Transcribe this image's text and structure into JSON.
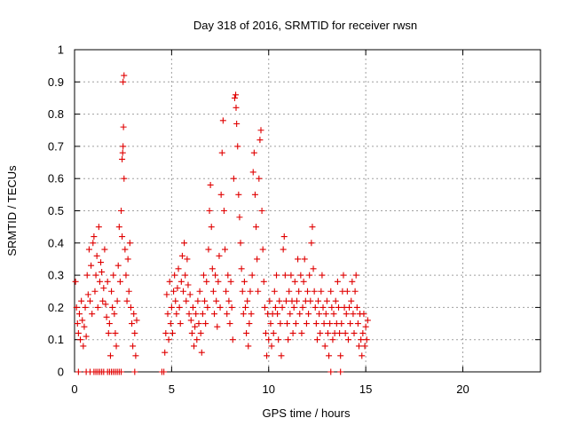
{
  "chart_data": {
    "type": "scatter",
    "title": "Day 318 of 2016, SRMTID for receiver rwsn",
    "xlabel": "GPS time / hours",
    "ylabel": "SRMTID / TECUs",
    "xlim": [
      0,
      24
    ],
    "ylim": [
      0,
      1
    ],
    "x_ticks": [
      "0",
      "5",
      "10",
      "15",
      "20"
    ],
    "y_ticks": [
      "0",
      "0.1",
      "0.2",
      "0.3",
      "0.4",
      "0.5",
      "0.6",
      "0.7",
      "0.8",
      "0.9",
      "1"
    ],
    "grid": true,
    "marker": "+",
    "marker_color": "#e00000",
    "series": [
      {
        "name": "SRMTID",
        "points": [
          [
            0.05,
            0.28
          ],
          [
            0.1,
            0.2
          ],
          [
            0.15,
            0.15
          ],
          [
            0.2,
            0.12
          ],
          [
            0.25,
            0.18
          ],
          [
            0.3,
            0.1
          ],
          [
            0.35,
            0.22
          ],
          [
            0.4,
            0.16
          ],
          [
            0.45,
            0.08
          ],
          [
            0.5,
            0.14
          ],
          [
            0.55,
            0.2
          ],
          [
            0.6,
            0.11
          ],
          [
            0.65,
            0.3
          ],
          [
            0.7,
            0.24
          ],
          [
            0.75,
            0.38
          ],
          [
            0.8,
            0.22
          ],
          [
            0.85,
            0.33
          ],
          [
            0.9,
            0.18
          ],
          [
            0.95,
            0.4
          ],
          [
            1.0,
            0.42
          ],
          [
            1.05,
            0.25
          ],
          [
            1.1,
            0.3
          ],
          [
            1.15,
            0.36
          ],
          [
            1.2,
            0.2
          ],
          [
            1.25,
            0.45
          ],
          [
            1.3,
            0.28
          ],
          [
            1.35,
            0.34
          ],
          [
            1.4,
            0.31
          ],
          [
            1.45,
            0.22
          ],
          [
            1.5,
            0.26
          ],
          [
            1.55,
            0.38
          ],
          [
            1.6,
            0.21
          ],
          [
            1.65,
            0.17
          ],
          [
            1.7,
            0.28
          ],
          [
            1.75,
            0.12
          ],
          [
            1.8,
            0.15
          ],
          [
            1.85,
            0.05
          ],
          [
            1.9,
            0.25
          ],
          [
            1.95,
            0.2
          ],
          [
            2.0,
            0.3
          ],
          [
            2.05,
            0.18
          ],
          [
            2.1,
            0.12
          ],
          [
            2.15,
            0.08
          ],
          [
            2.2,
            0.22
          ],
          [
            2.25,
            0.33
          ],
          [
            2.3,
            0.45
          ],
          [
            2.35,
            0.28
          ],
          [
            2.4,
            0.5
          ],
          [
            2.45,
            0.42
          ],
          [
            2.45,
            0.66
          ],
          [
            2.48,
            0.68
          ],
          [
            2.5,
            0.7
          ],
          [
            2.5,
            0.9
          ],
          [
            2.52,
            0.76
          ],
          [
            2.55,
            0.92
          ],
          [
            2.55,
            0.6
          ],
          [
            2.6,
            0.38
          ],
          [
            2.65,
            0.3
          ],
          [
            2.7,
            0.22
          ],
          [
            2.75,
            0.35
          ],
          [
            2.8,
            0.25
          ],
          [
            2.85,
            0.4
          ],
          [
            2.9,
            0.2
          ],
          [
            2.95,
            0.15
          ],
          [
            3.0,
            0.08
          ],
          [
            3.05,
            0.18
          ],
          [
            3.1,
            0.12
          ],
          [
            3.15,
            0.05
          ],
          [
            3.2,
            0.16
          ],
          [
            0.2,
            0
          ],
          [
            0.6,
            0
          ],
          [
            0.8,
            0
          ],
          [
            1.0,
            0
          ],
          [
            1.1,
            0
          ],
          [
            1.2,
            0
          ],
          [
            1.3,
            0
          ],
          [
            1.4,
            0
          ],
          [
            1.5,
            0
          ],
          [
            1.7,
            0
          ],
          [
            1.8,
            0
          ],
          [
            1.9,
            0
          ],
          [
            2.0,
            0
          ],
          [
            2.1,
            0
          ],
          [
            2.2,
            0
          ],
          [
            2.3,
            0
          ],
          [
            2.4,
            0
          ],
          [
            3.1,
            0
          ],
          [
            4.5,
            0
          ],
          [
            4.6,
            0
          ],
          [
            4.65,
            0.06
          ],
          [
            4.7,
            0.12
          ],
          [
            4.75,
            0.24
          ],
          [
            4.8,
            0.18
          ],
          [
            4.85,
            0.1
          ],
          [
            4.9,
            0.28
          ],
          [
            4.95,
            0.15
          ],
          [
            5.0,
            0.2
          ],
          [
            5.05,
            0.12
          ],
          [
            5.1,
            0.25
          ],
          [
            5.15,
            0.3
          ],
          [
            5.2,
            0.22
          ],
          [
            5.25,
            0.18
          ],
          [
            5.3,
            0.26
          ],
          [
            5.35,
            0.32
          ],
          [
            5.4,
            0.2
          ],
          [
            5.45,
            0.15
          ],
          [
            5.5,
            0.28
          ],
          [
            5.55,
            0.36
          ],
          [
            5.6,
            0.25
          ],
          [
            5.65,
            0.4
          ],
          [
            5.7,
            0.3
          ],
          [
            5.75,
            0.22
          ],
          [
            5.8,
            0.35
          ],
          [
            5.85,
            0.27
          ],
          [
            5.9,
            0.18
          ],
          [
            5.95,
            0.24
          ],
          [
            6.0,
            0.16
          ],
          [
            6.05,
            0.12
          ],
          [
            6.1,
            0.2
          ],
          [
            6.15,
            0.08
          ],
          [
            6.2,
            0.14
          ],
          [
            6.25,
            0.18
          ],
          [
            6.3,
            0.1
          ],
          [
            6.35,
            0.22
          ],
          [
            6.4,
            0.15
          ],
          [
            6.45,
            0.25
          ],
          [
            6.5,
            0.12
          ],
          [
            6.55,
            0.06
          ],
          [
            6.6,
            0.18
          ],
          [
            6.65,
            0.3
          ],
          [
            6.7,
            0.22
          ],
          [
            6.75,
            0.15
          ],
          [
            6.8,
            0.28
          ],
          [
            6.85,
            0.2
          ],
          [
            6.9,
            0.38
          ],
          [
            6.95,
            0.5
          ],
          [
            7.0,
            0.58
          ],
          [
            7.05,
            0.45
          ],
          [
            7.1,
            0.32
          ],
          [
            7.15,
            0.25
          ],
          [
            7.2,
            0.18
          ],
          [
            7.25,
            0.3
          ],
          [
            7.3,
            0.22
          ],
          [
            7.35,
            0.14
          ],
          [
            7.4,
            0.28
          ],
          [
            7.45,
            0.36
          ],
          [
            7.5,
            0.2
          ],
          [
            7.55,
            0.55
          ],
          [
            7.6,
            0.68
          ],
          [
            7.65,
            0.78
          ],
          [
            7.7,
            0.5
          ],
          [
            7.75,
            0.38
          ],
          [
            7.8,
            0.25
          ],
          [
            7.85,
            0.18
          ],
          [
            7.9,
            0.3
          ],
          [
            7.95,
            0.22
          ],
          [
            8.0,
            0.15
          ],
          [
            8.05,
            0.28
          ],
          [
            8.1,
            0.2
          ],
          [
            8.15,
            0.1
          ],
          [
            8.2,
            0.6
          ],
          [
            8.25,
            0.85
          ],
          [
            8.3,
            0.86
          ],
          [
            8.32,
            0.82
          ],
          [
            8.35,
            0.77
          ],
          [
            8.4,
            0.7
          ],
          [
            8.45,
            0.55
          ],
          [
            8.5,
            0.48
          ],
          [
            8.55,
            0.4
          ],
          [
            8.6,
            0.32
          ],
          [
            8.65,
            0.25
          ],
          [
            8.7,
            0.18
          ],
          [
            8.75,
            0.28
          ],
          [
            8.8,
            0.2
          ],
          [
            8.85,
            0.12
          ],
          [
            8.9,
            0.22
          ],
          [
            8.95,
            0.08
          ],
          [
            9.0,
            0.15
          ],
          [
            9.05,
            0.25
          ],
          [
            9.1,
            0.18
          ],
          [
            9.15,
            0.3
          ],
          [
            9.2,
            0.62
          ],
          [
            9.25,
            0.68
          ],
          [
            9.3,
            0.55
          ],
          [
            9.35,
            0.45
          ],
          [
            9.4,
            0.35
          ],
          [
            9.45,
            0.25
          ],
          [
            9.5,
            0.6
          ],
          [
            9.55,
            0.72
          ],
          [
            9.6,
            0.75
          ],
          [
            9.65,
            0.5
          ],
          [
            9.7,
            0.38
          ],
          [
            9.75,
            0.28
          ],
          [
            9.8,
            0.2
          ],
          [
            9.85,
            0.12
          ],
          [
            9.9,
            0.05
          ],
          [
            9.95,
            0.18
          ],
          [
            10.0,
            0.1
          ],
          [
            10.05,
            0.22
          ],
          [
            10.1,
            0.15
          ],
          [
            10.15,
            0.08
          ],
          [
            10.2,
            0.18
          ],
          [
            10.25,
            0.12
          ],
          [
            10.3,
            0.25
          ],
          [
            10.35,
            0.2
          ],
          [
            10.4,
            0.3
          ],
          [
            10.45,
            0.18
          ],
          [
            10.5,
            0.1
          ],
          [
            10.55,
            0.22
          ],
          [
            10.6,
            0.15
          ],
          [
            10.65,
            0.05
          ],
          [
            10.7,
            0.2
          ],
          [
            10.75,
            0.38
          ],
          [
            10.8,
            0.42
          ],
          [
            10.85,
            0.3
          ],
          [
            10.9,
            0.22
          ],
          [
            10.95,
            0.15
          ],
          [
            11.0,
            0.1
          ],
          [
            11.05,
            0.25
          ],
          [
            11.1,
            0.18
          ],
          [
            11.15,
            0.3
          ],
          [
            11.2,
            0.22
          ],
          [
            11.25,
            0.12
          ],
          [
            11.3,
            0.2
          ],
          [
            11.35,
            0.28
          ],
          [
            11.4,
            0.15
          ],
          [
            11.45,
            0.22
          ],
          [
            11.5,
            0.35
          ],
          [
            11.55,
            0.25
          ],
          [
            11.6,
            0.18
          ],
          [
            11.65,
            0.3
          ],
          [
            11.7,
            0.12
          ],
          [
            11.75,
            0.2
          ],
          [
            11.8,
            0.28
          ],
          [
            11.85,
            0.35
          ],
          [
            11.9,
            0.22
          ],
          [
            11.95,
            0.15
          ],
          [
            12.0,
            0.25
          ],
          [
            12.05,
            0.18
          ],
          [
            12.1,
            0.3
          ],
          [
            12.15,
            0.22
          ],
          [
            12.2,
            0.4
          ],
          [
            12.25,
            0.45
          ],
          [
            12.3,
            0.32
          ],
          [
            12.35,
            0.25
          ],
          [
            12.4,
            0.2
          ],
          [
            12.45,
            0.15
          ],
          [
            12.5,
            0.1
          ],
          [
            12.55,
            0.22
          ],
          [
            12.6,
            0.18
          ],
          [
            12.65,
            0.12
          ],
          [
            12.7,
            0.25
          ],
          [
            12.75,
            0.3
          ],
          [
            12.8,
            0.2
          ],
          [
            12.85,
            0.15
          ],
          [
            12.9,
            0.08
          ],
          [
            12.95,
            0.18
          ],
          [
            13.0,
            0.22
          ],
          [
            13.05,
            0.12
          ],
          [
            13.1,
            0.05
          ],
          [
            13.15,
            0.15
          ],
          [
            13.2,
            0.25
          ],
          [
            13.25,
            0.2
          ],
          [
            13.3,
            0.1
          ],
          [
            13.35,
            0.18
          ],
          [
            13.4,
            0.12
          ],
          [
            13.45,
            0.22
          ],
          [
            13.5,
            0.15
          ],
          [
            13.55,
            0.28
          ],
          [
            13.6,
            0.2
          ],
          [
            13.65,
            0.12
          ],
          [
            13.7,
            0.05
          ],
          [
            13.75,
            0.15
          ],
          [
            13.8,
            0.25
          ],
          [
            13.85,
            0.3
          ],
          [
            13.9,
            0.2
          ],
          [
            13.95,
            0.12
          ],
          [
            14.0,
            0.18
          ],
          [
            14.05,
            0.25
          ],
          [
            14.1,
            0.1
          ],
          [
            14.15,
            0.2
          ],
          [
            14.2,
            0.15
          ],
          [
            14.25,
            0.22
          ],
          [
            14.3,
            0.28
          ],
          [
            14.35,
            0.18
          ],
          [
            14.4,
            0.12
          ],
          [
            14.45,
            0.25
          ],
          [
            14.5,
            0.3
          ],
          [
            14.55,
            0.2
          ],
          [
            14.6,
            0.15
          ],
          [
            14.65,
            0.08
          ],
          [
            14.7,
            0.18
          ],
          [
            14.75,
            0.1
          ],
          [
            14.8,
            0.05
          ],
          [
            14.85,
            0.12
          ],
          [
            14.9,
            0.18
          ],
          [
            14.95,
            0.08
          ],
          [
            15.0,
            0.14
          ],
          [
            15.05,
            0.1
          ],
          [
            15.1,
            0.16
          ],
          [
            13.2,
            0
          ],
          [
            13.7,
            0
          ]
        ]
      }
    ]
  }
}
